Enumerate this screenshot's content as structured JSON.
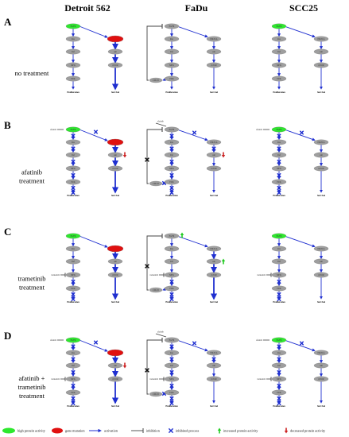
{
  "columns": [
    "Detroit 562",
    "FaDu",
    "SCC25"
  ],
  "rows": [
    {
      "letter": "A",
      "label_lines": [
        "no treatment"
      ]
    },
    {
      "letter": "B",
      "label_lines": [
        "afatinib",
        "treatment"
      ]
    },
    {
      "letter": "C",
      "label_lines": [
        "trametinib",
        "treatment"
      ]
    },
    {
      "letter": "D",
      "label_lines": [
        "afatinib +",
        "trametinib",
        "treatment"
      ]
    }
  ],
  "nodes": {
    "egfr": "EGFR",
    "ras": "Ras",
    "raf": "Raf",
    "mek": "MEK",
    "erk": "ERK",
    "pik3ca": "PIK3CA",
    "akt": "Akt",
    "mtor": "mTOR",
    "cdc25": "CDC25"
  },
  "outputs": {
    "proliferation": "Proliferation",
    "survival": "Survival"
  },
  "drugs": {
    "afatinib": "afatinib",
    "trametinib": "trametinib"
  },
  "colors": {
    "high_activity": "#2ee82e",
    "gene_mutation": "#e01010",
    "node_gray": "#9e9e9e",
    "activation": "#1f2fd0",
    "inhibition": "#444444",
    "increased": "#22cc22",
    "decreased": "#cc2222"
  },
  "legend": [
    {
      "type": "green-ellipse",
      "label": "high protein activity"
    },
    {
      "type": "red-ellipse",
      "label": "gene mutation"
    },
    {
      "type": "activation-arrow",
      "label": "activation"
    },
    {
      "type": "inhibition-bar",
      "label": "inhibition"
    },
    {
      "type": "blue-x",
      "label": "inhibited process"
    },
    {
      "type": "green-up-arrow",
      "label": "increased protein activity"
    },
    {
      "type": "red-down-arrow",
      "label": "decreased protein activity"
    }
  ]
}
